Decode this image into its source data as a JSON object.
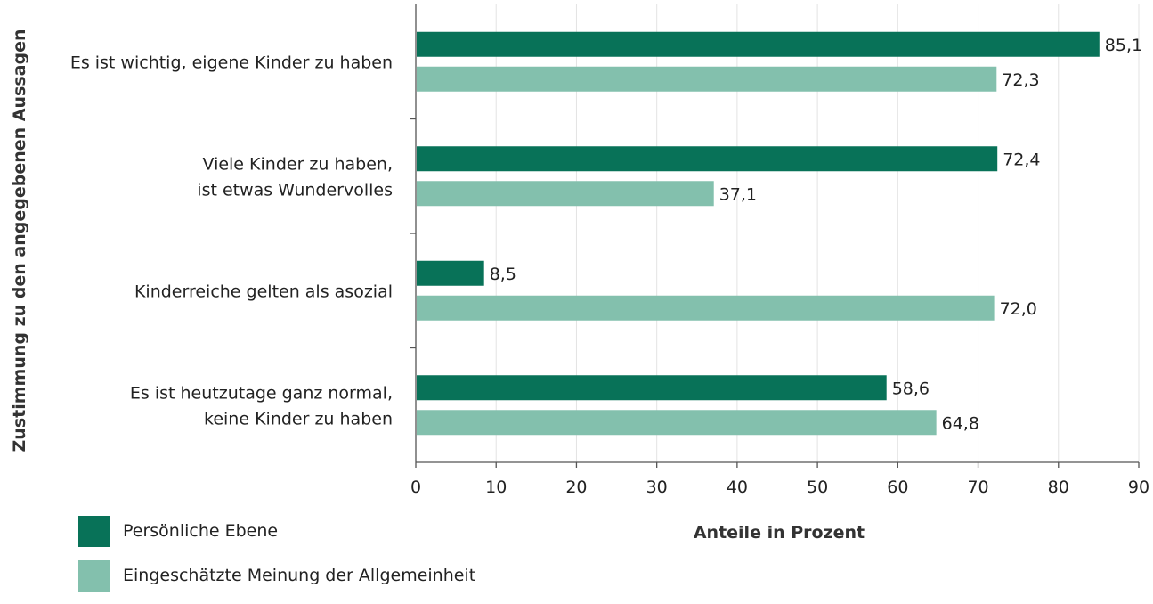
{
  "chart_data": {
    "type": "bar",
    "orientation": "horizontal",
    "categories": [
      [
        "Es ist wichtig, eigene Kinder zu haben"
      ],
      [
        "Viele Kinder zu haben,",
        "ist etwas Wundervolles"
      ],
      [
        "Kinderreiche gelten als asozial"
      ],
      [
        "Es ist heutzutage ganz normal,",
        "keine Kinder zu haben"
      ]
    ],
    "series": [
      {
        "name": "Persönliche Ebene",
        "color": "#087258",
        "values": [
          85.1,
          72.4,
          8.5,
          58.6
        ],
        "value_labels": [
          "85,1",
          "72,4",
          "8,5",
          "58,6"
        ]
      },
      {
        "name": "Eingeschätzte Meinung der Allgemeinheit",
        "color": "#83c0ad",
        "values": [
          72.3,
          37.1,
          72.0,
          64.8
        ],
        "value_labels": [
          "72,3",
          "37,1",
          "72,0",
          "64,8"
        ]
      }
    ],
    "xlabel": "Anteile in Prozent",
    "ylabel": "Zustimmung zu den angegebenen Aussagen",
    "xlim": [
      0,
      90
    ],
    "xticks": [
      "0",
      "10",
      "20",
      "30",
      "40",
      "50",
      "60",
      "70",
      "80",
      "90"
    ],
    "grid": "vertical",
    "legend_position": "bottom-left"
  }
}
